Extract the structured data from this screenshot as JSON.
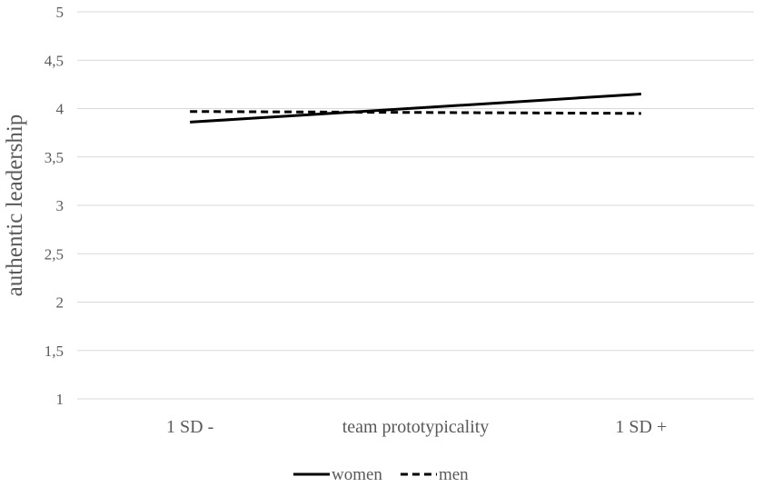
{
  "chart_data": {
    "type": "line",
    "categories": [
      "1 SD -",
      "team prototypicality",
      "1 SD +"
    ],
    "ylabel": "authentic leadership",
    "ylim": [
      1,
      5
    ],
    "yticks": [
      "1",
      "1,5",
      "2",
      "2,5",
      "3",
      "3,5",
      "4",
      "4,5",
      "5"
    ],
    "grid": true,
    "legend_position": "bottom",
    "series": [
      {
        "name": "women",
        "style": "solid",
        "color": "#000000",
        "x": [
          "1 SD -",
          "1 SD +"
        ],
        "values": [
          3.86,
          4.15
        ]
      },
      {
        "name": "men",
        "style": "dashed",
        "color": "#000000",
        "x": [
          "1 SD -",
          "1 SD +"
        ],
        "values": [
          3.97,
          3.95
        ]
      }
    ]
  }
}
